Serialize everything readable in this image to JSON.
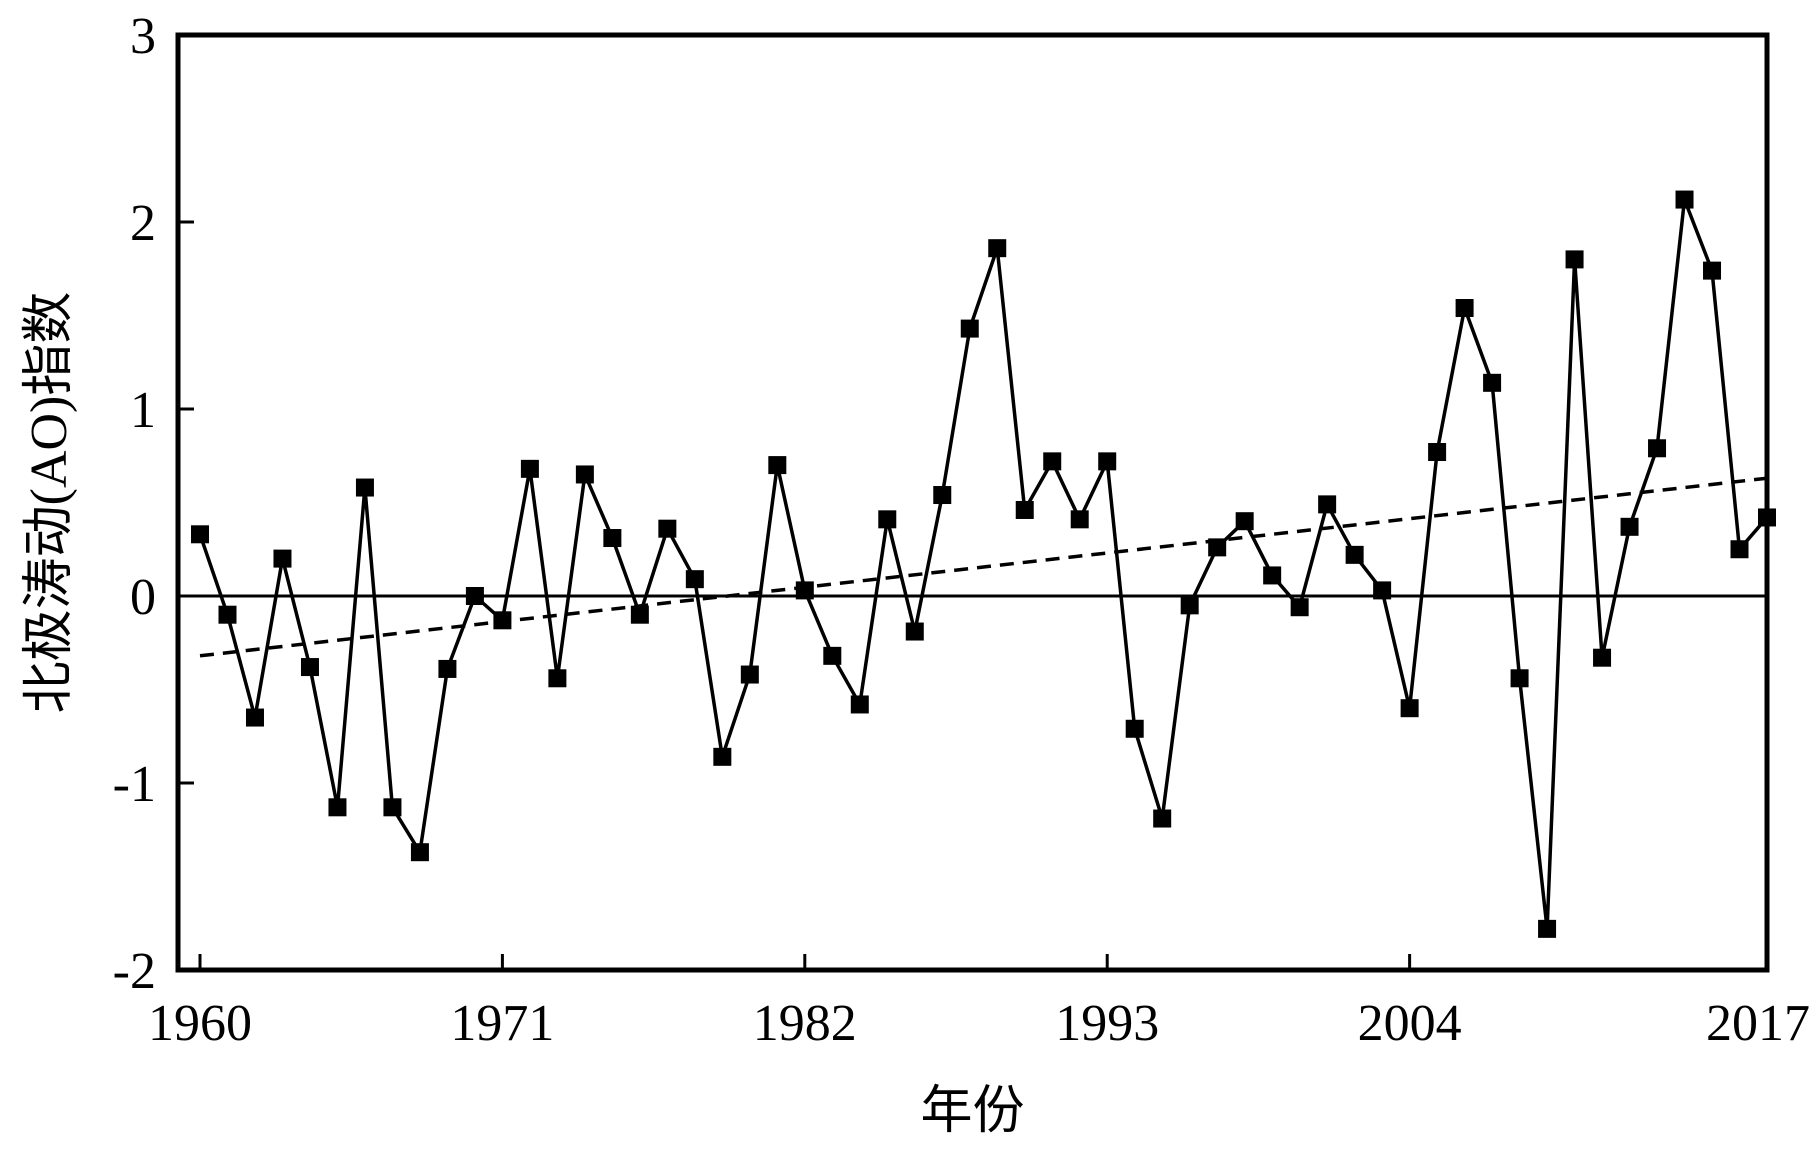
{
  "chart_data": {
    "type": "line",
    "title": "",
    "xlabel": "年份",
    "ylabel": "北极涛动(AO)指数",
    "xlim": [
      1960,
      2017
    ],
    "ylim": [
      -2,
      3
    ],
    "xticks": [
      1960,
      1971,
      1982,
      1993,
      2004,
      2017
    ],
    "yticks": [
      -2,
      -1,
      0,
      1,
      2,
      3
    ],
    "grid": false,
    "legend": "none",
    "reference_line": {
      "y": 0
    },
    "series": [
      {
        "style": "solid line with square markers",
        "color": "#000000",
        "x": [
          1960,
          1961,
          1962,
          1963,
          1964,
          1965,
          1966,
          1967,
          1968,
          1969,
          1970,
          1971,
          1972,
          1973,
          1974,
          1975,
          1976,
          1977,
          1978,
          1979,
          1980,
          1981,
          1982,
          1983,
          1984,
          1985,
          1986,
          1987,
          1988,
          1989,
          1990,
          1991,
          1992,
          1993,
          1994,
          1995,
          1996,
          1997,
          1998,
          1999,
          2000,
          2001,
          2002,
          2003,
          2004,
          2005,
          2006,
          2007,
          2008,
          2009,
          2010,
          2011,
          2012,
          2013,
          2014,
          2015,
          2016,
          2017
        ],
        "values": [
          0.33,
          -0.1,
          -0.65,
          0.2,
          -0.38,
          -1.13,
          0.58,
          -1.13,
          -1.37,
          -0.39,
          0.0,
          -0.13,
          0.68,
          -0.44,
          0.65,
          0.31,
          -0.1,
          0.36,
          0.09,
          -0.86,
          -0.42,
          0.7,
          0.03,
          -0.32,
          -0.58,
          0.41,
          -0.19,
          0.54,
          1.43,
          1.86,
          0.46,
          0.72,
          0.41,
          0.72,
          -0.71,
          -1.19,
          -0.05,
          0.26,
          0.4,
          0.11,
          -0.06,
          0.49,
          0.22,
          0.03,
          -0.6,
          0.77,
          1.54,
          1.14,
          -0.44,
          -1.78,
          1.8,
          -0.33,
          0.37,
          0.79,
          2.12,
          1.74,
          0.25,
          0.42
        ]
      },
      {
        "style": "dashed trend line",
        "color": "#000000",
        "x": [
          1960,
          2017
        ],
        "values": [
          -0.32,
          0.63
        ]
      }
    ]
  }
}
